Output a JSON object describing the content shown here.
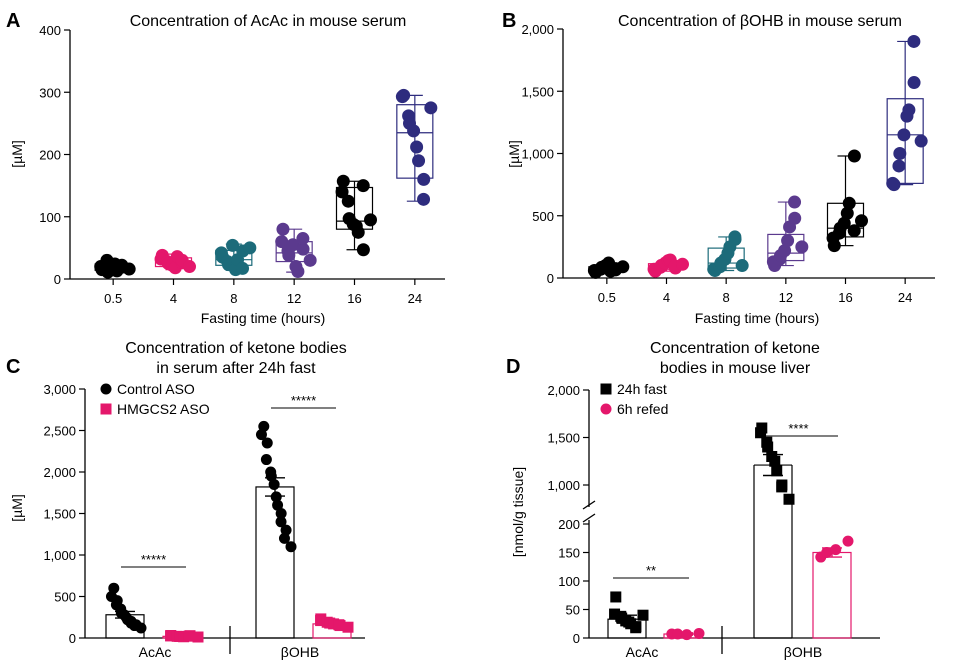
{
  "panels": {
    "A": {
      "letter": "A",
      "title": "Concentration of AcAc in mouse serum",
      "ylabel": "[µM]",
      "xlabel": "Fasting time (hours)"
    },
    "B": {
      "letter": "B",
      "title": "Concentration of βOHB in mouse serum",
      "ylabel": "[µM]",
      "xlabel": "Fasting time (hours)"
    },
    "C": {
      "letter": "C",
      "title_line1": "Concentration of ketone bodies",
      "title_line2": "in serum after 24h fast",
      "ylabel": "[µM]"
    },
    "D": {
      "letter": "D",
      "title_line1": "Concentration of ketone",
      "title_line2": "bodies in mouse liver",
      "ylabel": "[nmol/g tissue]"
    }
  },
  "chart_data": [
    {
      "id": "A",
      "type": "box",
      "title": "Concentration of AcAc in mouse serum",
      "xlabel": "Fasting time (hours)",
      "ylabel": "[µM]",
      "categories": [
        "0.5",
        "4",
        "8",
        "12",
        "16",
        "24"
      ],
      "colors": [
        "#000000",
        "#e4176b",
        "#1c6b7a",
        "#5b3a8e",
        "#000000",
        "#2e2c7e"
      ],
      "ylim": [
        0,
        400
      ],
      "yticks": [
        0,
        100,
        200,
        300,
        400
      ],
      "ytick_labels": [
        "0",
        "100",
        "200",
        "300",
        "400"
      ],
      "boxes": [
        {
          "min": 11,
          "q1": 14,
          "median": 18,
          "q3": 24,
          "max": 30
        },
        {
          "min": 15,
          "q1": 20,
          "median": 26,
          "q3": 34,
          "max": 40
        },
        {
          "min": 14,
          "q1": 22,
          "median": 31,
          "q3": 46,
          "max": 56
        },
        {
          "min": 11,
          "q1": 28,
          "median": 42,
          "q3": 60,
          "max": 80
        },
        {
          "min": 47,
          "q1": 80,
          "median": 93,
          "q3": 147,
          "max": 157
        },
        {
          "min": 125,
          "q1": 162,
          "median": 235,
          "q3": 280,
          "max": 295
        }
      ],
      "points": [
        [
          15,
          20,
          30,
          11,
          17,
          24,
          13,
          19,
          22,
          16
        ],
        [
          38,
          32,
          28,
          25,
          22,
          18,
          36,
          26,
          30,
          20
        ],
        [
          35,
          42,
          28,
          23,
          54,
          15,
          31,
          45,
          17,
          50
        ],
        [
          80,
          60,
          45,
          38,
          55,
          20,
          12,
          48,
          65,
          30
        ],
        [
          157,
          140,
          125,
          97,
          88,
          85,
          75,
          47,
          150,
          95
        ],
        [
          295,
          293,
          262,
          250,
          238,
          212,
          190,
          160,
          128,
          275
        ]
      ]
    },
    {
      "id": "B",
      "type": "box",
      "title": "Concentration of βOHB in mouse serum",
      "xlabel": "Fasting time (hours)",
      "ylabel": "[µM]",
      "categories": [
        "0.5",
        "4",
        "8",
        "12",
        "16",
        "24"
      ],
      "colors": [
        "#000000",
        "#e4176b",
        "#1c6b7a",
        "#5b3a8e",
        "#000000",
        "#2e2c7e"
      ],
      "ylim": [
        0,
        2000
      ],
      "yticks": [
        0,
        500,
        1000,
        1500,
        2000
      ],
      "ytick_labels": [
        "0",
        "500",
        "1,000",
        "1,500",
        "2,000"
      ],
      "boxes": [
        {
          "min": 45,
          "q1": 55,
          "median": 70,
          "q3": 90,
          "max": 120
        },
        {
          "min": 55,
          "q1": 70,
          "median": 90,
          "q3": 115,
          "max": 145
        },
        {
          "min": 60,
          "q1": 80,
          "median": 120,
          "q3": 240,
          "max": 330
        },
        {
          "min": 100,
          "q1": 140,
          "median": 200,
          "q3": 350,
          "max": 610
        },
        {
          "min": 260,
          "q1": 330,
          "median": 400,
          "q3": 600,
          "max": 980
        },
        {
          "min": 750,
          "q1": 760,
          "median": 1150,
          "q3": 1440,
          "max": 1900
        }
      ],
      "points": [
        [
          45,
          60,
          70,
          85,
          100,
          120,
          55,
          75,
          65,
          90
        ],
        [
          55,
          70,
          85,
          100,
          120,
          140,
          145,
          80,
          95,
          110
        ],
        [
          60,
          70,
          90,
          120,
          150,
          200,
          250,
          310,
          330,
          100
        ],
        [
          100,
          130,
          150,
          180,
          220,
          300,
          410,
          480,
          610,
          250
        ],
        [
          260,
          320,
          360,
          400,
          440,
          520,
          600,
          980,
          380,
          460
        ],
        [
          750,
          760,
          900,
          1000,
          1150,
          1300,
          1350,
          1570,
          1900,
          1100
        ]
      ]
    },
    {
      "id": "C",
      "type": "bar",
      "title": "Concentration of ketone bodies in serum after 24h fast",
      "ylabel": "[µM]",
      "categories": [
        "AcAc",
        "βOHB"
      ],
      "ylim": [
        0,
        3000
      ],
      "yticks": [
        0,
        500,
        1000,
        1500,
        2000,
        2500,
        3000
      ],
      "ytick_labels": [
        "0",
        "500",
        "1,000",
        "1,500",
        "2,000",
        "2,500",
        "3,000"
      ],
      "legend": "top-left",
      "series": [
        {
          "name": "Control ASO",
          "color": "#000000",
          "marker": "circle",
          "values": [
            280,
            1820
          ],
          "errors": [
            40,
            110
          ],
          "points": [
            [
              600,
              500,
              450,
              400,
              350,
              300,
              280,
              250,
              220,
              200,
              180,
              160,
              150,
              120
            ],
            [
              2550,
              2450,
              2350,
              2150,
              2000,
              1950,
              1850,
              1700,
              1600,
              1500,
              1400,
              1300,
              1200,
              1100
            ]
          ]
        },
        {
          "name": "HMGCS2 ASO",
          "color": "#e4176b",
          "marker": "square",
          "values": [
            20,
            170
          ],
          "errors": [
            8,
            20
          ],
          "points": [
            [
              30,
              25,
              20,
              18,
              15,
              22,
              28,
              12
            ],
            [
              230,
              210,
              190,
              180,
              170,
              160,
              150,
              130
            ]
          ]
        }
      ],
      "significance": [
        {
          "category": "AcAc",
          "label": "*****"
        },
        {
          "category": "βOHB",
          "label": "*****"
        }
      ]
    },
    {
      "id": "D",
      "type": "bar",
      "title": "Concentration of ketone bodies in mouse liver",
      "ylabel": "[nmol/g tissue]",
      "categories": [
        "AcAc",
        "βOHB"
      ],
      "broken_axis": [
        200,
        800
      ],
      "ylim": [
        0,
        2000
      ],
      "yticks": [
        0,
        50,
        100,
        150,
        200,
        1000,
        1500,
        2000
      ],
      "ytick_labels": [
        "0",
        "50",
        "100",
        "150",
        "200",
        "1,000",
        "1,500",
        "2,000"
      ],
      "legend": "top-left",
      "series": [
        {
          "name": "24h fast",
          "color": "#000000",
          "marker": "square",
          "values": [
            33,
            1210
          ],
          "errors": [
            7,
            110
          ],
          "points": [
            [
              72,
              42,
              38,
              35,
              30,
              28,
              25,
              20,
              18,
              40
            ],
            [
              1600,
              1550,
              1450,
              1400,
              1300,
              1250,
              1150,
              1000,
              980,
              850
            ]
          ]
        },
        {
          "name": "6h refed",
          "color": "#e4176b",
          "marker": "circle",
          "values": [
            7,
            150
          ],
          "errors": [
            2,
            8
          ],
          "points": [
            [
              7,
              7,
              6,
              8
            ],
            [
              142,
              150,
              155,
              170
            ]
          ]
        }
      ],
      "significance": [
        {
          "category": "AcAc",
          "label": "**"
        },
        {
          "category": "βOHB",
          "label": "****"
        }
      ]
    }
  ]
}
